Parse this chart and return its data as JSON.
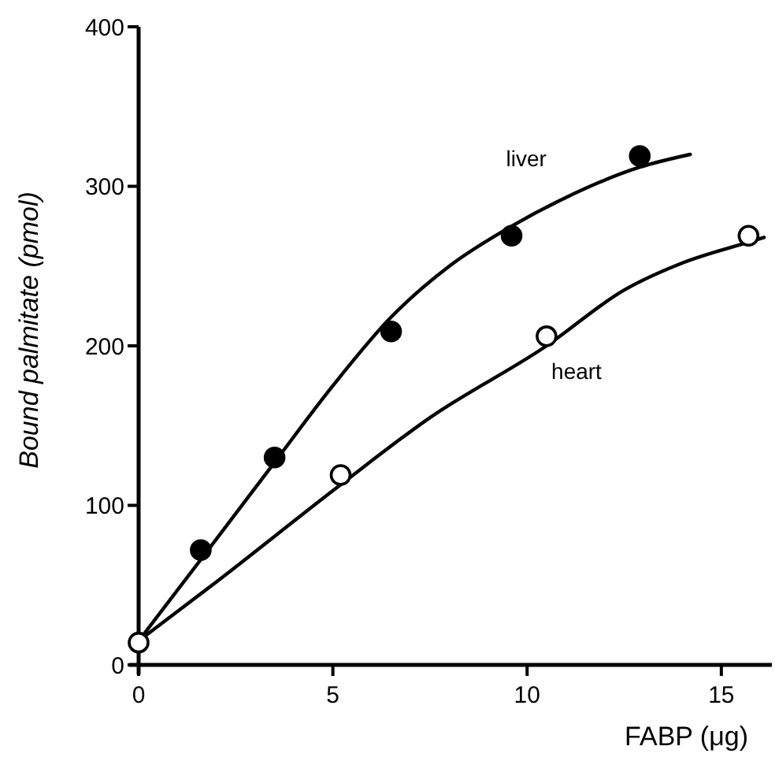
{
  "chart_data": {
    "type": "scatter",
    "xlabel": "FABP (μg)",
    "ylabel": "Bound palmitate (pmol)",
    "xlim": [
      0,
      16.3
    ],
    "ylim": [
      0,
      400
    ],
    "xticks": [
      0,
      5,
      10,
      15
    ],
    "yticks": [
      0,
      100,
      200,
      300,
      400
    ],
    "grid": false,
    "legend": false,
    "series": [
      {
        "type": "line",
        "name": "liver",
        "color": "#000000",
        "marker": "none",
        "x": [
          0,
          1.6,
          3.5,
          5,
          6.5,
          8,
          9.6,
          11,
          12.9,
          14.2
        ],
        "values": [
          15,
          66,
          127,
          175,
          218,
          250,
          275,
          293,
          312,
          320
        ]
      },
      {
        "type": "line",
        "name": "heart",
        "color": "#000000",
        "marker": "none",
        "x": [
          0,
          2,
          5.2,
          7.5,
          10.5,
          12.5,
          14,
          15.7,
          16.1
        ],
        "values": [
          15,
          52,
          113,
          155,
          200,
          235,
          252,
          265,
          268
        ]
      },
      {
        "color": "#000000",
        "marker": "circle",
        "x": [
          1.6,
          3.5,
          6.5,
          9.6,
          12.9
        ],
        "values": [
          72,
          130,
          209,
          269,
          319
        ]
      },
      {
        "color": "#ffffff",
        "marker": "circle",
        "x": [
          0,
          5.2,
          10.5,
          15.7
        ],
        "values": [
          14,
          119,
          206,
          269
        ]
      }
    ]
  }
}
